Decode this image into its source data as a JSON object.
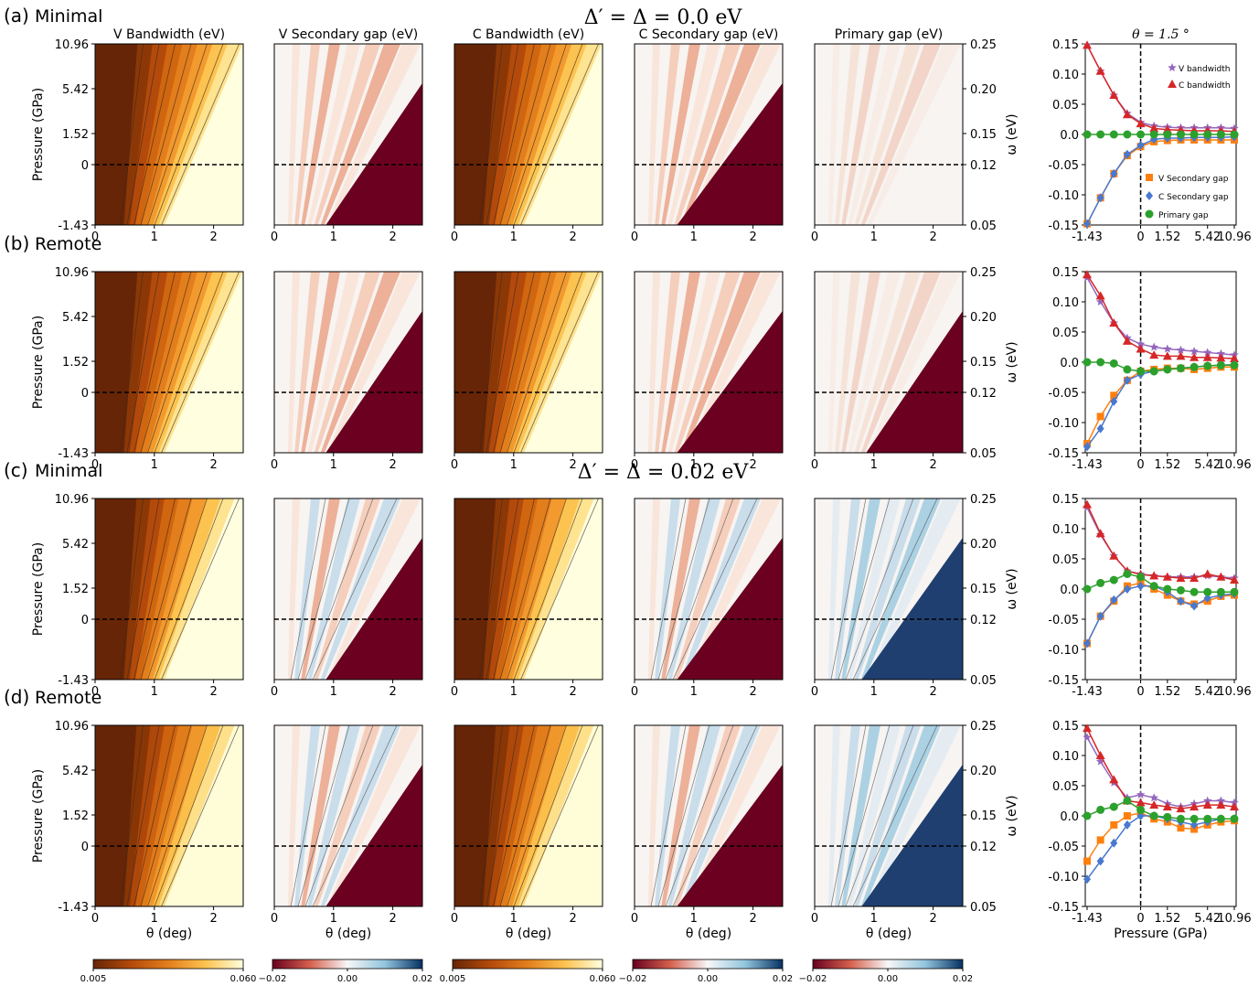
{
  "chart_data": {
    "type": "heatmap",
    "rows": [
      {
        "tag": "(a)",
        "model": "Minimal",
        "delta_title": "Δ′ = Δ = 0.0 eV"
      },
      {
        "tag": "(b)",
        "model": "Remote",
        "delta_title": ""
      },
      {
        "tag": "(c)",
        "model": "Minimal",
        "delta_title": "Δ′ = Δ = 0.02 eV"
      },
      {
        "tag": "(d)",
        "model": "Remote",
        "delta_title": ""
      }
    ],
    "column_titles": [
      "V Bandwidth (eV)",
      "V Secondary gap (eV)",
      "C Bandwidth (eV)",
      "C Secondary gap (eV)",
      "Primary gap (eV)"
    ],
    "heatmap_xlabel": "θ (deg)",
    "heatmap_ylabel": "Pressure (GPa)",
    "heatmap_xticks": [
      "0",
      "1",
      "2"
    ],
    "heatmap_xlim": [
      0,
      2.5
    ],
    "pressure_ticks": [
      "10.96",
      "5.42",
      "1.52",
      "0",
      "-1.43"
    ],
    "omega_ticks": [
      "0.25",
      "0.20",
      "0.15",
      "0.12",
      "0.05"
    ],
    "omega_label": "ω (eV)",
    "colorbars": [
      {
        "cmap": "YlOrBr",
        "ticks": [
          "0.005",
          "0.060"
        ],
        "range": [
          0.005,
          0.06
        ]
      },
      {
        "cmap": "RdBu",
        "ticks": [
          "−0.02",
          "0.00",
          "0.02"
        ],
        "range": [
          -0.02,
          0.02
        ]
      },
      {
        "cmap": "YlOrBr",
        "ticks": [
          "0.005",
          "0.060"
        ],
        "range": [
          0.005,
          0.06
        ]
      },
      {
        "cmap": "RdBu",
        "ticks": [
          "−0.02",
          "0.00",
          "0.02"
        ],
        "range": [
          -0.02,
          0.02
        ]
      },
      {
        "cmap": "RdBu",
        "ticks": [
          "−0.02",
          "0.00",
          "0.02"
        ],
        "range": [
          -0.02,
          0.02
        ]
      }
    ],
    "line_panel": {
      "type": "line",
      "title": "θ = 1.5 °",
      "xlabel": "Pressure (GPa)",
      "xtick_labels": [
        "-1.43",
        "0",
        "1.52",
        "5.42",
        "10.96"
      ],
      "ylim": [
        -0.15,
        0.15
      ],
      "ytick_labels": [
        "0.15",
        "0.10",
        "0.05",
        "0.0",
        "-0.05",
        "-0.10",
        "-0.15"
      ],
      "series_names": [
        "V bandwidth",
        "C bandwidth",
        "V Secondary gap",
        "C Secondary gap",
        "Primary gap"
      ],
      "series_colors": [
        "#9467bd",
        "#d62728",
        "#ff7f0e",
        "#4878cf",
        "#2ca02c"
      ],
      "x_index": [
        0,
        1,
        2,
        3,
        4,
        5,
        6,
        7,
        8,
        9,
        10,
        11
      ],
      "panels": [
        {
          "series": [
            [
              0.148,
              0.105,
              0.065,
              0.035,
              0.02,
              0.014,
              0.012,
              0.011,
              0.011,
              0.011,
              0.011,
              0.01
            ],
            [
              0.148,
              0.105,
              0.065,
              0.033,
              0.018,
              0.01,
              0.008,
              0.007,
              0.006,
              0.006,
              0.006,
              0.005
            ],
            [
              -0.148,
              -0.105,
              -0.065,
              -0.035,
              -0.02,
              -0.012,
              -0.01,
              -0.009,
              -0.009,
              -0.009,
              -0.009,
              -0.009
            ],
            [
              -0.148,
              -0.105,
              -0.065,
              -0.033,
              -0.018,
              -0.008,
              -0.006,
              -0.006,
              -0.005,
              -0.005,
              -0.005,
              -0.004
            ],
            [
              0.0,
              0.0,
              0.0,
              0.0,
              0.0,
              0.0,
              0.0,
              0.0,
              0.0,
              0.0,
              0.0,
              0.0
            ]
          ]
        },
        {
          "series": [
            [
              0.14,
              0.1,
              0.065,
              0.04,
              0.03,
              0.025,
              0.022,
              0.02,
              0.018,
              0.016,
              0.014,
              0.012
            ],
            [
              0.145,
              0.11,
              0.065,
              0.035,
              0.022,
              0.012,
              0.01,
              0.01,
              0.008,
              0.008,
              0.007,
              0.006
            ],
            [
              -0.135,
              -0.09,
              -0.055,
              -0.03,
              -0.015,
              -0.012,
              -0.01,
              -0.01,
              -0.012,
              -0.01,
              -0.008,
              -0.008
            ],
            [
              -0.14,
              -0.11,
              -0.065,
              -0.03,
              -0.02,
              -0.015,
              -0.012,
              -0.01,
              -0.008,
              -0.006,
              -0.005,
              -0.004
            ],
            [
              0.0,
              0.0,
              -0.002,
              -0.012,
              -0.015,
              -0.015,
              -0.012,
              -0.01,
              -0.008,
              -0.006,
              -0.005,
              -0.005
            ]
          ]
        },
        {
          "series": [
            [
              0.135,
              0.09,
              0.055,
              0.03,
              0.025,
              0.022,
              0.02,
              0.02,
              0.02,
              0.022,
              0.02,
              0.018
            ],
            [
              0.14,
              0.092,
              0.055,
              0.03,
              0.024,
              0.022,
              0.02,
              0.018,
              0.018,
              0.025,
              0.02,
              0.015
            ],
            [
              -0.09,
              -0.045,
              -0.02,
              0.005,
              0.01,
              0.0,
              -0.01,
              -0.02,
              -0.025,
              -0.02,
              -0.012,
              -0.01
            ],
            [
              -0.09,
              -0.045,
              -0.018,
              0.0,
              0.005,
              0.005,
              -0.005,
              -0.02,
              -0.028,
              -0.015,
              -0.01,
              -0.008
            ],
            [
              0.0,
              0.01,
              0.015,
              0.025,
              0.02,
              0.005,
              0.0,
              -0.002,
              -0.005,
              -0.005,
              -0.005,
              -0.005
            ]
          ]
        },
        {
          "series": [
            [
              0.13,
              0.09,
              0.055,
              0.03,
              0.035,
              0.03,
              0.02,
              0.015,
              0.02,
              0.025,
              0.025,
              0.022
            ],
            [
              0.145,
              0.1,
              0.06,
              0.025,
              0.022,
              0.018,
              0.015,
              0.012,
              0.015,
              0.018,
              0.018,
              0.015
            ],
            [
              -0.075,
              -0.04,
              -0.015,
              0.0,
              0.005,
              -0.005,
              -0.01,
              -0.02,
              -0.022,
              -0.015,
              -0.01,
              -0.008
            ],
            [
              -0.105,
              -0.075,
              -0.045,
              -0.015,
              0.0,
              0.0,
              -0.005,
              -0.01,
              -0.015,
              -0.01,
              -0.005,
              -0.005
            ],
            [
              0.0,
              0.01,
              0.015,
              0.025,
              0.01,
              0.0,
              -0.002,
              -0.005,
              -0.005,
              -0.005,
              -0.005,
              -0.005
            ]
          ]
        }
      ]
    }
  }
}
